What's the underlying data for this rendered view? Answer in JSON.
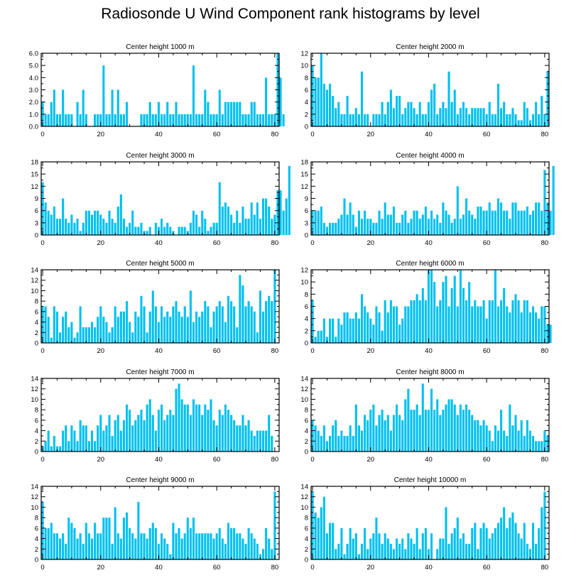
{
  "title": "Radiosonde U Wind Component rank histograms by level",
  "colors": {
    "bar": "#00c0f0",
    "axis": "#000000",
    "background": "#ffffff"
  },
  "chart_data": [
    {
      "type": "bar",
      "title": "Center height 1000 m",
      "x_start": 0,
      "xlim": [
        -0.5,
        81.5
      ],
      "xticks": [
        0,
        20,
        40,
        60,
        80
      ],
      "ylim": [
        0,
        6
      ],
      "yticks": [
        0,
        1,
        2,
        3,
        4,
        5,
        6
      ],
      "ytick_labels": [
        "0.0",
        "1.0",
        "2.0",
        "3.0",
        "4.0",
        "5.0",
        "6.0"
      ],
      "values": [
        2,
        1,
        1,
        2,
        3,
        1,
        1,
        3,
        1,
        1,
        1,
        0,
        2,
        1,
        3,
        1,
        0,
        0,
        1,
        1,
        1,
        5,
        1,
        1,
        3,
        1,
        3,
        1,
        1,
        2,
        0,
        0,
        0,
        0,
        1,
        1,
        1,
        2,
        1,
        1,
        2,
        1,
        1,
        2,
        1,
        1,
        2,
        1,
        1,
        1,
        1,
        1,
        5,
        1,
        1,
        1,
        3,
        2,
        1,
        1,
        1,
        3,
        1,
        2,
        2,
        2,
        2,
        2,
        2,
        1,
        1,
        1,
        2,
        2,
        1,
        1,
        1,
        4,
        1,
        1,
        1,
        6,
        4,
        1
      ]
    },
    {
      "type": "bar",
      "title": "Center height 2000 m",
      "x_start": 0,
      "xlim": [
        -0.5,
        81.5
      ],
      "xticks": [
        0,
        20,
        40,
        60,
        80
      ],
      "ylim": [
        0,
        12
      ],
      "yticks": [
        0,
        2,
        4,
        6,
        8,
        10,
        12
      ],
      "ytick_labels": [
        "0",
        "2",
        "4",
        "6",
        "8",
        "10",
        "12"
      ],
      "values": [
        10,
        8,
        8,
        12,
        7,
        6,
        7,
        5,
        3,
        4,
        2,
        2,
        5,
        2,
        2,
        3,
        2,
        9,
        2,
        2,
        0,
        2,
        2,
        2,
        4,
        2,
        4,
        6,
        3,
        5,
        5,
        2,
        3,
        4,
        4,
        3,
        2,
        4,
        2,
        2,
        4,
        6,
        7,
        2,
        3,
        4,
        3,
        9,
        4,
        6,
        2,
        3,
        4,
        3,
        2,
        3,
        3,
        3,
        3,
        3,
        2,
        4,
        2,
        2,
        7,
        3,
        4,
        2,
        2,
        3,
        2,
        1,
        1,
        4,
        3,
        1,
        2,
        4,
        2,
        5,
        2,
        9
      ]
    },
    {
      "type": "bar",
      "title": "Center height 3000 m",
      "x_start": 0,
      "xlim": [
        -0.5,
        81.5
      ],
      "xticks": [
        0,
        20,
        40,
        60,
        80
      ],
      "ylim": [
        0,
        18
      ],
      "yticks": [
        0,
        3,
        6,
        9,
        12,
        15,
        18
      ],
      "ytick_labels": [
        "0",
        "3",
        "6",
        "9",
        "12",
        "15",
        "18"
      ],
      "values": [
        13,
        8,
        6,
        5,
        7,
        4,
        4,
        9,
        4,
        3,
        5,
        3,
        4,
        1,
        3,
        6,
        6,
        5,
        6,
        6,
        5,
        4,
        3,
        6,
        4,
        3,
        7,
        10,
        4,
        2,
        3,
        6,
        2,
        2,
        3,
        1,
        1,
        2,
        0,
        3,
        2,
        4,
        2,
        3,
        2,
        1,
        0,
        2,
        2,
        2,
        1,
        3,
        6,
        5,
        2,
        6,
        4,
        1,
        2,
        3,
        3,
        13,
        7,
        8,
        7,
        5,
        3,
        6,
        3,
        7,
        4,
        4,
        8,
        5,
        8,
        4,
        9,
        9,
        7,
        4,
        5,
        11,
        11,
        6,
        9,
        17
      ]
    },
    {
      "type": "bar",
      "title": "Center height 4000 m",
      "x_start": 0,
      "xlim": [
        -0.5,
        81.5
      ],
      "xticks": [
        0,
        20,
        40,
        60,
        80
      ],
      "ylim": [
        0,
        18
      ],
      "yticks": [
        0,
        3,
        6,
        9,
        12,
        15,
        18
      ],
      "ytick_labels": [
        "0",
        "3",
        "6",
        "9",
        "12",
        "15",
        "18"
      ],
      "values": [
        6,
        6,
        6,
        7,
        3,
        2,
        3,
        3,
        3,
        4,
        5,
        9,
        5,
        8,
        5,
        2,
        6,
        4,
        6,
        4,
        4,
        3,
        3,
        6,
        4,
        8,
        5,
        5,
        7,
        3,
        3,
        5,
        6,
        3,
        4,
        6,
        6,
        4,
        5,
        7,
        4,
        6,
        4,
        5,
        3,
        8,
        6,
        5,
        3,
        4,
        12,
        4,
        5,
        9,
        6,
        5,
        4,
        7,
        7,
        6,
        6,
        8,
        6,
        6,
        9,
        8,
        6,
        6,
        4,
        8,
        8,
        6,
        6,
        6,
        7,
        5,
        6,
        8,
        8,
        6,
        16,
        8,
        6,
        17
      ]
    },
    {
      "type": "bar",
      "title": "Center height 5000 m",
      "x_start": 0,
      "xlim": [
        -0.5,
        81.5
      ],
      "xticks": [
        0,
        20,
        40,
        60,
        80
      ],
      "ylim": [
        0,
        14
      ],
      "yticks": [
        0,
        2,
        4,
        6,
        8,
        10,
        12,
        14
      ],
      "ytick_labels": [
        "0",
        "2",
        "4",
        "6",
        "8",
        "10",
        "12",
        "14"
      ],
      "values": [
        7,
        7,
        5,
        1,
        7,
        6,
        2,
        5,
        6,
        3,
        4,
        1,
        2,
        7,
        3,
        3,
        3,
        4,
        3,
        5,
        7,
        5,
        4,
        2,
        3,
        7,
        5,
        6,
        6,
        8,
        4,
        2,
        6,
        5,
        9,
        7,
        2,
        6,
        10,
        7,
        4,
        7,
        5,
        6,
        5,
        7,
        8,
        6,
        5,
        7,
        5,
        10,
        4,
        6,
        5,
        6,
        8,
        7,
        3,
        6,
        7,
        8,
        7,
        4,
        9,
        8,
        7,
        3,
        13,
        11,
        7,
        8,
        7,
        6,
        2,
        10,
        6,
        8,
        9,
        8,
        14
      ]
    },
    {
      "type": "bar",
      "title": "Center height 6000 m",
      "x_start": 0,
      "xlim": [
        -0.5,
        81.5
      ],
      "xticks": [
        0,
        20,
        40,
        60,
        80
      ],
      "ylim": [
        0,
        12
      ],
      "yticks": [
        0,
        2,
        4,
        6,
        8,
        10,
        12
      ],
      "ytick_labels": [
        "0",
        "2",
        "4",
        "6",
        "8",
        "10",
        "12"
      ],
      "values": [
        7,
        1,
        2,
        2,
        4,
        1,
        4,
        4,
        1,
        4,
        3,
        5,
        5,
        4,
        4,
        5,
        4,
        8,
        6,
        5,
        4,
        3,
        6,
        5,
        2,
        7,
        5,
        7,
        6,
        6,
        3,
        4,
        6,
        6,
        7,
        7,
        8,
        7,
        9,
        7,
        12,
        12,
        10,
        6,
        7,
        10,
        11,
        6,
        9,
        11,
        6,
        12,
        9,
        7,
        10,
        6,
        7,
        6,
        6,
        7,
        4,
        7,
        7,
        12,
        6,
        7,
        9,
        6,
        5,
        7,
        8,
        7,
        5,
        7,
        7,
        5,
        6,
        5,
        4,
        6,
        6,
        3,
        3
      ]
    },
    {
      "type": "bar",
      "title": "Center height 7000 m",
      "x_start": 0,
      "xlim": [
        -0.5,
        81.5
      ],
      "xticks": [
        0,
        20,
        40,
        60,
        80
      ],
      "ylim": [
        0,
        14
      ],
      "yticks": [
        0,
        2,
        4,
        6,
        8,
        10,
        12,
        14
      ],
      "ytick_labels": [
        "0",
        "2",
        "4",
        "6",
        "8",
        "10",
        "12",
        "14"
      ],
      "values": [
        1,
        2,
        4,
        1,
        3,
        1,
        1,
        4,
        5,
        2,
        5,
        4,
        2,
        6,
        5,
        5,
        2,
        4,
        2,
        5,
        7,
        4,
        5,
        7,
        3,
        6,
        7,
        4,
        6,
        9,
        8,
        5,
        6,
        7,
        8,
        6,
        9,
        10,
        7,
        4,
        8,
        9,
        6,
        7,
        8,
        7,
        12,
        13,
        10,
        9,
        9,
        7,
        10,
        9,
        9,
        7,
        9,
        8,
        10,
        6,
        5,
        8,
        7,
        9,
        8,
        7,
        6,
        5,
        5,
        7,
        5,
        6,
        4,
        3,
        4,
        4,
        4,
        4,
        7,
        3
      ]
    },
    {
      "type": "bar",
      "title": "Center height 8000 m",
      "x_start": 0,
      "xlim": [
        -0.5,
        81.5
      ],
      "xticks": [
        0,
        20,
        40,
        60,
        80
      ],
      "ylim": [
        0,
        14
      ],
      "yticks": [
        0,
        2,
        4,
        6,
        8,
        10,
        12,
        14
      ],
      "ytick_labels": [
        "0",
        "2",
        "4",
        "6",
        "8",
        "10",
        "12",
        "14"
      ],
      "values": [
        6,
        5,
        4,
        3,
        5,
        2,
        3,
        5,
        6,
        3,
        4,
        3,
        3,
        5,
        3,
        9,
        5,
        4,
        7,
        6,
        8,
        9,
        5,
        7,
        8,
        6,
        7,
        4,
        7,
        9,
        7,
        6,
        10,
        12,
        8,
        8,
        9,
        7,
        13,
        8,
        8,
        12,
        8,
        10,
        7,
        8,
        9,
        10,
        10,
        9,
        7,
        9,
        8,
        9,
        8,
        7,
        6,
        6,
        5,
        6,
        5,
        4,
        2,
        5,
        4,
        8,
        4,
        3,
        9,
        5,
        7,
        4,
        6,
        3,
        6,
        4,
        3,
        2,
        2,
        2,
        4,
        3
      ]
    },
    {
      "type": "bar",
      "title": "Center height 9000 m",
      "x_start": 0,
      "xlim": [
        -0.5,
        81.5
      ],
      "xticks": [
        0,
        20,
        40,
        60,
        80
      ],
      "ylim": [
        0,
        14
      ],
      "yticks": [
        0,
        2,
        4,
        6,
        8,
        10,
        12,
        14
      ],
      "ytick_labels": [
        "0",
        "2",
        "4",
        "6",
        "8",
        "10",
        "12",
        "14"
      ],
      "values": [
        11,
        6,
        6,
        7,
        5,
        5,
        4,
        5,
        3,
        8,
        7,
        6,
        4,
        5,
        3,
        7,
        5,
        4,
        7,
        5,
        5,
        8,
        8,
        8,
        3,
        10,
        5,
        4,
        8,
        9,
        6,
        5,
        4,
        11,
        5,
        5,
        4,
        6,
        7,
        6,
        3,
        5,
        4,
        3,
        1,
        7,
        5,
        6,
        4,
        5,
        8,
        6,
        8,
        5,
        5,
        5,
        5,
        5,
        5,
        4,
        5,
        6,
        4,
        3,
        7,
        6,
        6,
        5,
        5,
        4,
        3,
        6,
        5,
        4,
        3,
        1,
        2,
        6,
        4,
        2,
        13
      ]
    },
    {
      "type": "bar",
      "title": "Center height 10000 m",
      "x_start": 0,
      "xlim": [
        -0.5,
        81.5
      ],
      "xticks": [
        0,
        20,
        40,
        60,
        80
      ],
      "ylim": [
        0,
        14
      ],
      "yticks": [
        0,
        2,
        4,
        6,
        8,
        10,
        12,
        14
      ],
      "ytick_labels": [
        "0",
        "2",
        "4",
        "6",
        "8",
        "10",
        "12",
        "14"
      ],
      "values": [
        13,
        9,
        8,
        10,
        12,
        5,
        7,
        7,
        2,
        3,
        6,
        1,
        3,
        6,
        4,
        5,
        1,
        3,
        6,
        2,
        4,
        5,
        8,
        5,
        3,
        5,
        4,
        3,
        2,
        4,
        3,
        4,
        2,
        5,
        4,
        3,
        6,
        2,
        5,
        6,
        2,
        5,
        0,
        2,
        4,
        4,
        10,
        3,
        5,
        6,
        8,
        4,
        5,
        3,
        3,
        6,
        7,
        2,
        6,
        7,
        6,
        4,
        5,
        6,
        7,
        8,
        10,
        6,
        8,
        9,
        7,
        5,
        4,
        7,
        3,
        2,
        7,
        3,
        6,
        10,
        13
      ]
    }
  ]
}
